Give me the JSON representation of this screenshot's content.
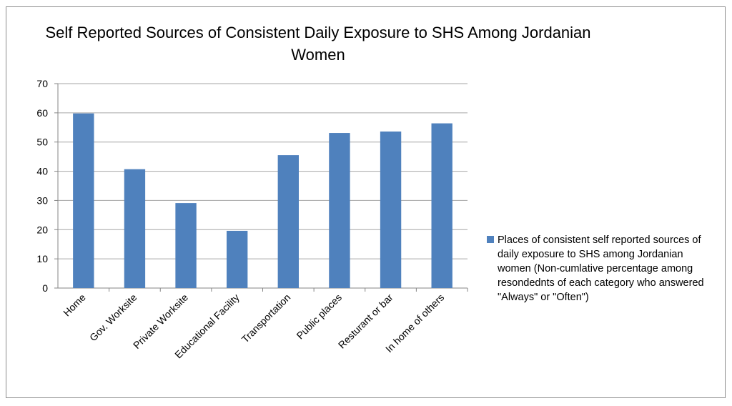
{
  "chart_data": {
    "type": "bar",
    "title": "Self Reported Sources of Consistent Daily Exposure to SHS Among Jordanian Women",
    "categories": [
      "Home",
      "Gov. Worksite",
      "Private Worksite",
      "Educational Facility",
      "Transportation",
      "Public places",
      "Resturant or bar",
      "In home of others"
    ],
    "series": [
      {
        "name": "Places of consistent self reported sources of daily exposure to SHS among Jordanian women (Non-cumlative percentage among resondednts of each category who answered \"Always\" or \"Often\")",
        "values": [
          59.8,
          40.7,
          29.1,
          19.6,
          45.5,
          53.1,
          53.6,
          56.4
        ],
        "color": "#4f81bd"
      }
    ],
    "ylim": [
      0,
      70
    ],
    "yticks": [
      0,
      10,
      20,
      30,
      40,
      50,
      60,
      70
    ],
    "grid": true,
    "legend_position": "right"
  }
}
